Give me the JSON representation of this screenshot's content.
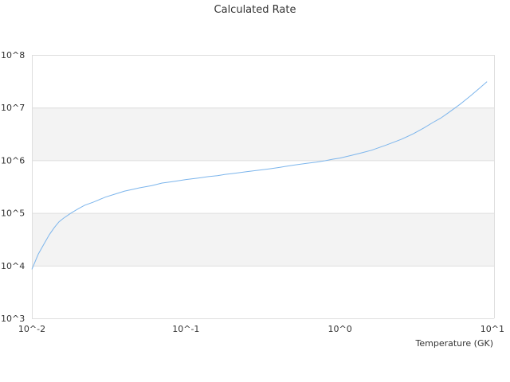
{
  "chart_data": {
    "type": "line",
    "title": "Calculated Rate",
    "xlabel": "Temperature (GK)",
    "ylabel": "",
    "xscale": "log",
    "yscale": "log",
    "xlim": [
      0.01,
      10
    ],
    "ylim": [
      1000,
      100000000
    ],
    "x_tick_labels": [
      "10^-2",
      "10^-1",
      "10^0",
      "10^1"
    ],
    "y_tick_labels": [
      "10^3",
      "10^4",
      "10^5",
      "10^6",
      "10^7",
      "10^8"
    ],
    "grid": "horizontal alternating bands",
    "legend": "none",
    "colors": {
      "series": "#7cb5ec",
      "band": "#f3f3f3",
      "grid": "#dedede",
      "text": "#333333"
    },
    "series": [
      {
        "x": [
          0.01,
          0.011,
          0.012,
          0.013,
          0.014,
          0.015,
          0.016,
          0.018,
          0.02,
          0.022,
          0.025,
          0.03,
          0.035,
          0.04,
          0.045,
          0.05,
          0.06,
          0.07,
          0.08,
          0.09,
          0.1,
          0.12,
          0.14,
          0.16,
          0.18,
          0.2,
          0.25,
          0.3,
          0.35,
          0.4,
          0.45,
          0.5,
          0.6,
          0.7,
          0.8,
          0.9,
          1.0,
          1.2,
          1.4,
          1.6,
          1.8,
          2.0,
          2.5,
          3.0,
          3.5,
          4.0,
          4.5,
          5.0,
          6.0,
          7.0,
          8.0,
          9.0
        ],
        "values": [
          8500,
          16500,
          26000,
          39000,
          53000,
          68000,
          79000,
          100000,
          120000,
          140000,
          160000,
          200000,
          230000,
          260000,
          280000,
          300000,
          330000,
          370000,
          390000,
          410000,
          430000,
          460000,
          490000,
          510000,
          540000,
          560000,
          610000,
          650000,
          690000,
          730000,
          770000,
          810000,
          870000,
          920000,
          980000,
          1050000,
          1100000,
          1250000,
          1400000,
          1550000,
          1750000,
          1950000,
          2500000,
          3200000,
          4100000,
          5200000,
          6300000,
          7800000,
          11500000,
          16500000,
          23000000,
          31000000
        ]
      }
    ]
  }
}
